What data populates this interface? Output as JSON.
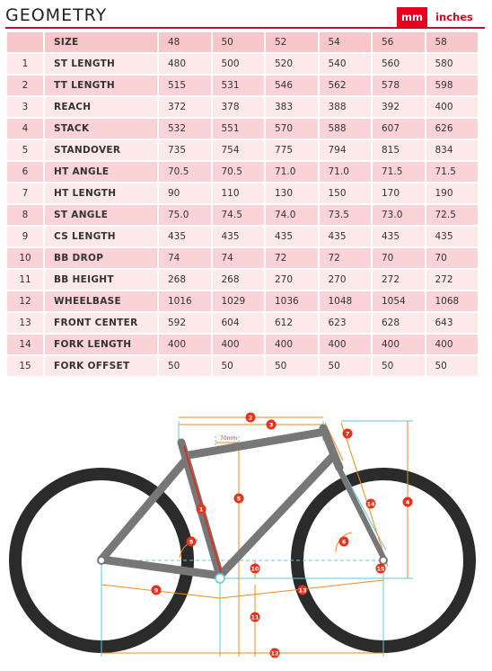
{
  "header": {
    "title": "GEOMETRY",
    "unit_mm": "mm",
    "unit_inches": "inches"
  },
  "table": {
    "columns": [
      "SIZE",
      "48",
      "50",
      "52",
      "54",
      "56",
      "58"
    ],
    "rows": [
      {
        "num": "1",
        "name": "ST LENGTH",
        "values": [
          "480",
          "500",
          "520",
          "540",
          "560",
          "580"
        ]
      },
      {
        "num": "2",
        "name": "TT LENGTH",
        "values": [
          "515",
          "531",
          "546",
          "562",
          "578",
          "598"
        ]
      },
      {
        "num": "3",
        "name": "REACH",
        "values": [
          "372",
          "378",
          "383",
          "388",
          "392",
          "400"
        ]
      },
      {
        "num": "4",
        "name": "STACK",
        "values": [
          "532",
          "551",
          "570",
          "588",
          "607",
          "626"
        ]
      },
      {
        "num": "5",
        "name": "STANDOVER",
        "values": [
          "735",
          "754",
          "775",
          "794",
          "815",
          "834"
        ]
      },
      {
        "num": "6",
        "name": "HT ANGLE",
        "values": [
          "70.5",
          "70.5",
          "71.0",
          "71.0",
          "71.5",
          "71.5"
        ]
      },
      {
        "num": "7",
        "name": "HT LENGTH",
        "values": [
          "90",
          "110",
          "130",
          "150",
          "170",
          "190"
        ]
      },
      {
        "num": "8",
        "name": "ST ANGLE",
        "values": [
          "75.0",
          "74.5",
          "74.0",
          "73.5",
          "73.0",
          "72.5"
        ]
      },
      {
        "num": "9",
        "name": "CS LENGTH",
        "values": [
          "435",
          "435",
          "435",
          "435",
          "435",
          "435"
        ]
      },
      {
        "num": "10",
        "name": "BB DROP",
        "values": [
          "74",
          "74",
          "72",
          "72",
          "70",
          "70"
        ]
      },
      {
        "num": "11",
        "name": "BB HEIGHT",
        "values": [
          "268",
          "268",
          "270",
          "270",
          "272",
          "272"
        ]
      },
      {
        "num": "12",
        "name": "WHEELBASE",
        "values": [
          "1016",
          "1029",
          "1036",
          "1048",
          "1054",
          "1068"
        ]
      },
      {
        "num": "13",
        "name": "FRONT CENTER",
        "values": [
          "592",
          "604",
          "612",
          "623",
          "628",
          "643"
        ]
      },
      {
        "num": "14",
        "name": "FORK LENGTH",
        "values": [
          "400",
          "400",
          "400",
          "400",
          "400",
          "400"
        ]
      },
      {
        "num": "15",
        "name": "FORK OFFSET",
        "values": [
          "50",
          "50",
          "50",
          "50",
          "50",
          "50"
        ]
      }
    ]
  },
  "diagram": {
    "markers": [
      "1",
      "2",
      "3",
      "4",
      "5",
      "6",
      "7",
      "8",
      "9",
      "10",
      "11",
      "12",
      "13",
      "14",
      "15"
    ],
    "stack_label": "70mm"
  },
  "colors": {
    "accent": "#e8001e",
    "row_light": "#fde8ea",
    "row_dark": "#f9d3d7",
    "frame": "#777777",
    "tire": "#2b2b2b",
    "dim_line": "#5cc8e0"
  }
}
